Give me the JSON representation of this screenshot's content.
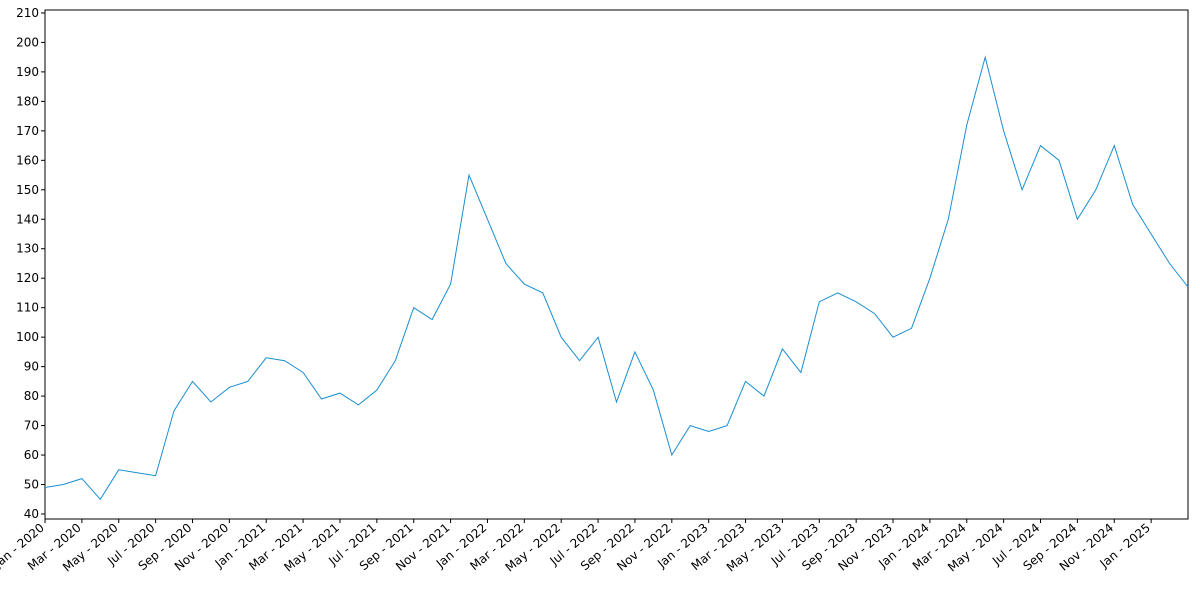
{
  "chart_data": {
    "type": "line",
    "x": [
      "2020-01",
      "2020-02",
      "2020-03",
      "2020-04",
      "2020-05",
      "2020-06",
      "2020-07",
      "2020-08",
      "2020-09",
      "2020-10",
      "2020-11",
      "2020-12",
      "2021-01",
      "2021-02",
      "2021-03",
      "2021-04",
      "2021-05",
      "2021-06",
      "2021-07",
      "2021-08",
      "2021-09",
      "2021-10",
      "2021-11",
      "2021-12",
      "2022-01",
      "2022-02",
      "2022-03",
      "2022-04",
      "2022-05",
      "2022-06",
      "2022-07",
      "2022-08",
      "2022-09",
      "2022-10",
      "2022-11",
      "2022-12",
      "2023-01",
      "2023-02",
      "2023-03",
      "2023-04",
      "2023-05",
      "2023-06",
      "2023-07",
      "2023-08",
      "2023-09",
      "2023-10",
      "2023-11",
      "2023-12",
      "2024-01",
      "2024-02",
      "2024-03",
      "2024-04",
      "2024-05",
      "2024-06",
      "2024-07",
      "2024-08",
      "2024-09",
      "2024-10",
      "2024-11",
      "2024-12",
      "2025-01",
      "2025-02",
      "2025-03"
    ],
    "series": [
      {
        "color": "#1a8fd0",
        "values": [
          49,
          50,
          52,
          45,
          55,
          54,
          53,
          75,
          85,
          78,
          83,
          85,
          93,
          92,
          88,
          79,
          81,
          77,
          82,
          92,
          110,
          106,
          118,
          155,
          140,
          125,
          118,
          115,
          100,
          92,
          100,
          78,
          95,
          82,
          60,
          70,
          68,
          70,
          85,
          80,
          96,
          88,
          112,
          115,
          112,
          108,
          100,
          103,
          120,
          140,
          172,
          195,
          170,
          150,
          165,
          160,
          140,
          150,
          165,
          145,
          135,
          125,
          117
        ]
      }
    ],
    "xlim": [
      "2020-01",
      "2025-03"
    ],
    "xticks": [
      {
        "value": "2020-01",
        "label": "Jan - 2020"
      },
      {
        "value": "2020-03",
        "label": "Mar - 2020"
      },
      {
        "value": "2020-05",
        "label": "May - 2020"
      },
      {
        "value": "2020-07",
        "label": "Jul - 2020"
      },
      {
        "value": "2020-09",
        "label": "Sep - 2020"
      },
      {
        "value": "2020-11",
        "label": "Nov - 2020"
      },
      {
        "value": "2021-01",
        "label": "Jan - 2021"
      },
      {
        "value": "2021-03",
        "label": "Mar - 2021"
      },
      {
        "value": "2021-05",
        "label": "May - 2021"
      },
      {
        "value": "2021-07",
        "label": "Jul - 2021"
      },
      {
        "value": "2021-09",
        "label": "Sep - 2021"
      },
      {
        "value": "2021-11",
        "label": "Nov - 2021"
      },
      {
        "value": "2022-01",
        "label": "Jan - 2022"
      },
      {
        "value": "2022-03",
        "label": "Mar - 2022"
      },
      {
        "value": "2022-05",
        "label": "May - 2022"
      },
      {
        "value": "2022-07",
        "label": "Jul - 2022"
      },
      {
        "value": "2022-09",
        "label": "Sep - 2022"
      },
      {
        "value": "2022-11",
        "label": "Nov - 2022"
      },
      {
        "value": "2023-01",
        "label": "Jan - 2023"
      },
      {
        "value": "2023-03",
        "label": "Mar - 2023"
      },
      {
        "value": "2023-05",
        "label": "May - 2023"
      },
      {
        "value": "2023-07",
        "label": "Jul - 2023"
      },
      {
        "value": "2023-09",
        "label": "Sep - 2023"
      },
      {
        "value": "2023-11",
        "label": "Nov - 2023"
      },
      {
        "value": "2024-01",
        "label": "Jan - 2024"
      },
      {
        "value": "2024-03",
        "label": "Mar - 2024"
      },
      {
        "value": "2024-05",
        "label": "May - 2024"
      },
      {
        "value": "2024-07",
        "label": "Jul - 2024"
      },
      {
        "value": "2024-09",
        "label": "Sep - 2024"
      },
      {
        "value": "2024-11",
        "label": "Nov - 2024"
      },
      {
        "value": "2025-01",
        "label": "Jan - 2025"
      }
    ],
    "ylim": [
      38.3,
      211
    ],
    "yticks": [
      40,
      50,
      60,
      70,
      80,
      90,
      100,
      110,
      120,
      130,
      140,
      150,
      160,
      170,
      180,
      190,
      200,
      210
    ]
  }
}
